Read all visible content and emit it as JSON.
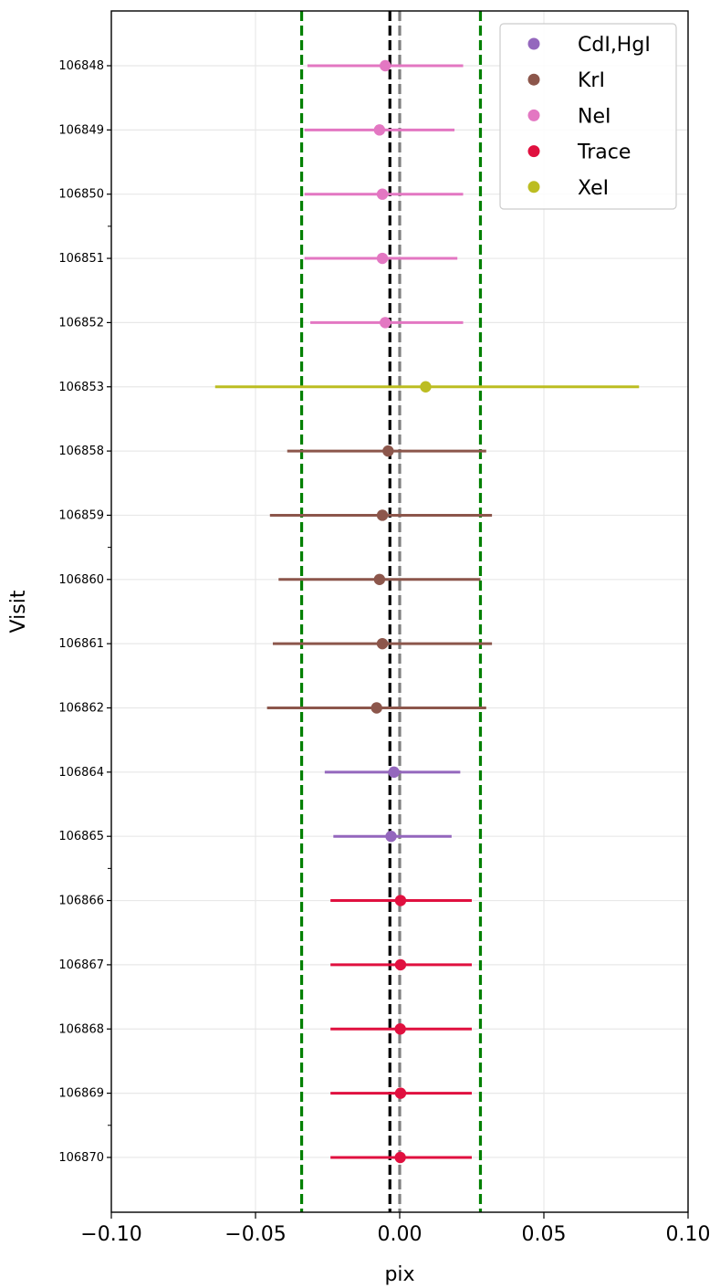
{
  "chart_data": {
    "type": "scatter",
    "xlabel": "pix",
    "ylabel": "Visit",
    "xlim": [
      -0.1,
      0.1
    ],
    "xticks": [
      -0.1,
      -0.05,
      0.0,
      0.05,
      0.1
    ],
    "xtick_labels": [
      "−0.10",
      "−0.05",
      "0.00",
      "0.05",
      "0.10"
    ],
    "grid": true,
    "legend_position": "top-right",
    "colors": {
      "CdI,HgI": "#9467bd",
      "KrI": "#8c564b",
      "NeI": "#e377c2",
      "Trace": "#e0103f",
      "XeI": "#bcbd22"
    },
    "legend": [
      "CdI,HgI",
      "KrI",
      "NeI",
      "Trace",
      "XeI"
    ],
    "reference_lines": [
      {
        "x": -0.0034,
        "color": "#000000",
        "style": "dashed"
      },
      {
        "x": 0.0,
        "color": "#808080",
        "style": "dashed"
      },
      {
        "x": -0.034,
        "color": "#008000",
        "style": "dashed"
      },
      {
        "x": 0.028,
        "color": "#008000",
        "style": "dashed"
      }
    ],
    "points": [
      {
        "visit": "106848",
        "group": "NeI",
        "x": -0.005,
        "xmin": -0.032,
        "xmax": 0.022
      },
      {
        "visit": "106849",
        "group": "NeI",
        "x": -0.007,
        "xmin": -0.033,
        "xmax": 0.019
      },
      {
        "visit": "106850",
        "group": "NeI",
        "x": -0.006,
        "xmin": -0.033,
        "xmax": 0.022
      },
      {
        "visit": "106851",
        "group": "NeI",
        "x": -0.006,
        "xmin": -0.033,
        "xmax": 0.02
      },
      {
        "visit": "106852",
        "group": "NeI",
        "x": -0.005,
        "xmin": -0.031,
        "xmax": 0.022
      },
      {
        "visit": "106853",
        "group": "XeI",
        "x": 0.009,
        "xmin": -0.064,
        "xmax": 0.083
      },
      {
        "visit": "106858",
        "group": "KrI",
        "x": -0.004,
        "xmin": -0.039,
        "xmax": 0.03
      },
      {
        "visit": "106859",
        "group": "KrI",
        "x": -0.006,
        "xmin": -0.045,
        "xmax": 0.032
      },
      {
        "visit": "106860",
        "group": "KrI",
        "x": -0.007,
        "xmin": -0.042,
        "xmax": 0.028
      },
      {
        "visit": "106861",
        "group": "KrI",
        "x": -0.006,
        "xmin": -0.044,
        "xmax": 0.032
      },
      {
        "visit": "106862",
        "group": "KrI",
        "x": -0.008,
        "xmin": -0.046,
        "xmax": 0.03
      },
      {
        "visit": "106864",
        "group": "CdI,HgI",
        "x": -0.002,
        "xmin": -0.026,
        "xmax": 0.021
      },
      {
        "visit": "106865",
        "group": "CdI,HgI",
        "x": -0.003,
        "xmin": -0.023,
        "xmax": 0.018
      },
      {
        "visit": "106866",
        "group": "Trace",
        "x": 0.0003,
        "xmin": -0.024,
        "xmax": 0.025
      },
      {
        "visit": "106867",
        "group": "Trace",
        "x": 0.0003,
        "xmin": -0.024,
        "xmax": 0.025
      },
      {
        "visit": "106868",
        "group": "Trace",
        "x": 0.0002,
        "xmin": -0.024,
        "xmax": 0.025
      },
      {
        "visit": "106869",
        "group": "Trace",
        "x": 0.0003,
        "xmin": -0.024,
        "xmax": 0.025
      },
      {
        "visit": "106870",
        "group": "Trace",
        "x": 0.0002,
        "xmin": -0.024,
        "xmax": 0.025
      }
    ]
  }
}
